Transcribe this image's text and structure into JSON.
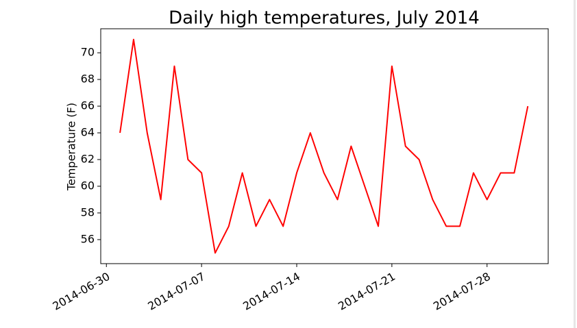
{
  "chart_data": {
    "type": "line",
    "title": "Daily high temperatures, July 2014",
    "y_label": "Temperature (F)",
    "x": [
      "2014-07-01",
      "2014-07-02",
      "2014-07-03",
      "2014-07-04",
      "2014-07-05",
      "2014-07-06",
      "2014-07-07",
      "2014-07-08",
      "2014-07-09",
      "2014-07-10",
      "2014-07-11",
      "2014-07-12",
      "2014-07-13",
      "2014-07-14",
      "2014-07-15",
      "2014-07-16",
      "2014-07-17",
      "2014-07-18",
      "2014-07-19",
      "2014-07-20",
      "2014-07-21",
      "2014-07-22",
      "2014-07-23",
      "2014-07-24",
      "2014-07-25",
      "2014-07-26",
      "2014-07-27",
      "2014-07-28",
      "2014-07-29",
      "2014-07-30",
      "2014-07-31"
    ],
    "series": [
      {
        "color": "#ff0000",
        "values": [
          64,
          71,
          64,
          59,
          69,
          62,
          61,
          55,
          57,
          61,
          57,
          59,
          57,
          61,
          64,
          61,
          59,
          63,
          60,
          57,
          69,
          63,
          62,
          59,
          57,
          57,
          61,
          59,
          61,
          61,
          66
        ]
      }
    ],
    "xlim": [
      "2014-06-29T14:00:00Z",
      "2014-08-01T12:00:00Z"
    ],
    "xticks": [
      "2014-06-30",
      "2014-07-07",
      "2014-07-14",
      "2014-07-21",
      "2014-07-28"
    ],
    "ylim": [
      54.2,
      71.8
    ],
    "yticks": [
      56,
      58,
      60,
      62,
      64,
      66,
      68,
      70
    ],
    "grid": false
  }
}
